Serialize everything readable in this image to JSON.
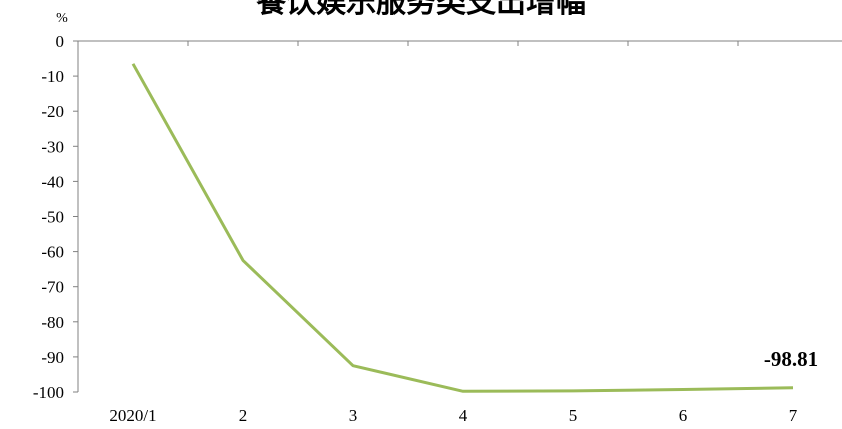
{
  "chart_data": {
    "type": "line",
    "title": "餐饮娱乐服务类支出增幅",
    "y_unit": "%",
    "categories": [
      "2020/1",
      "2",
      "3",
      "4",
      "5",
      "6",
      "7"
    ],
    "series": [
      {
        "values": [
          -6.5,
          -62.5,
          -92.5,
          -99.8,
          -99.7,
          -99.3,
          -98.81
        ],
        "color": "#9bbb59"
      }
    ],
    "yticks": [
      0,
      -10,
      -20,
      -30,
      -40,
      -50,
      -60,
      -70,
      -80,
      -90,
      -100
    ],
    "ylim": [
      -100,
      0
    ],
    "end_label": "-98.81",
    "grid": false,
    "legend": "none"
  }
}
